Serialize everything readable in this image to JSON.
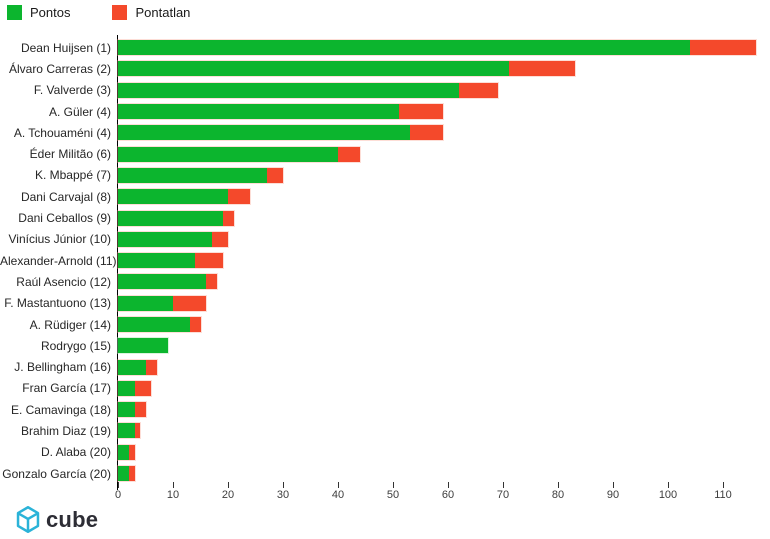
{
  "legend": {
    "items": [
      {
        "label": "Pontos",
        "color": "#0cb52e"
      },
      {
        "label": "Pontatlan",
        "color": "#f4492b"
      }
    ]
  },
  "footer": {
    "logo_text": "cube",
    "logo_color": "#2bb3d8"
  },
  "chart_data": {
    "type": "bar",
    "orientation": "horizontal",
    "stacked": true,
    "title": "",
    "xlabel": "",
    "ylabel": "",
    "grid": false,
    "legend_position": "top-left",
    "xlim": [
      0,
      117
    ],
    "x_ticks": [
      0,
      10,
      20,
      30,
      40,
      50,
      60,
      70,
      80,
      90,
      100,
      110
    ],
    "categories": [
      "Dean Huijsen (1)",
      "Álvaro Carreras (2)",
      "F. Valverde (3)",
      "A. Güler (4)",
      "A. Tchouaméni (4)",
      "Éder Militão (6)",
      "K. Mbappé (7)",
      "Dani Carvajal (8)",
      "Dani Ceballos (9)",
      "Vinícius Júnior (10)",
      "Alexander-Arnold (11)",
      "Raúl Asencio (12)",
      "F. Mastantuono (13)",
      "A. Rüdiger (14)",
      "Rodrygo (15)",
      "J. Bellingham (16)",
      "Fran García (17)",
      "E. Camavinga (18)",
      "Brahim Diaz (19)",
      "D. Alaba (20)",
      "Gonzalo García (20)"
    ],
    "series": [
      {
        "name": "Pontos",
        "color": "#0cb52e",
        "values": [
          104,
          71,
          62,
          51,
          53,
          40,
          27,
          20,
          19,
          17,
          14,
          16,
          10,
          13,
          9,
          5,
          3,
          3,
          3,
          2,
          2
        ]
      },
      {
        "name": "Pontatlan",
        "color": "#f4492b",
        "values": [
          12,
          12,
          7,
          8,
          6,
          4,
          3,
          4,
          2,
          3,
          5,
          2,
          6,
          2,
          0,
          2,
          3,
          2,
          1,
          1,
          1
        ]
      }
    ],
    "totals": [
      116,
      83,
      69,
      59,
      59,
      44,
      30,
      24,
      21,
      20,
      19,
      18,
      16,
      15,
      9,
      7,
      6,
      5,
      4,
      3,
      3
    ]
  }
}
